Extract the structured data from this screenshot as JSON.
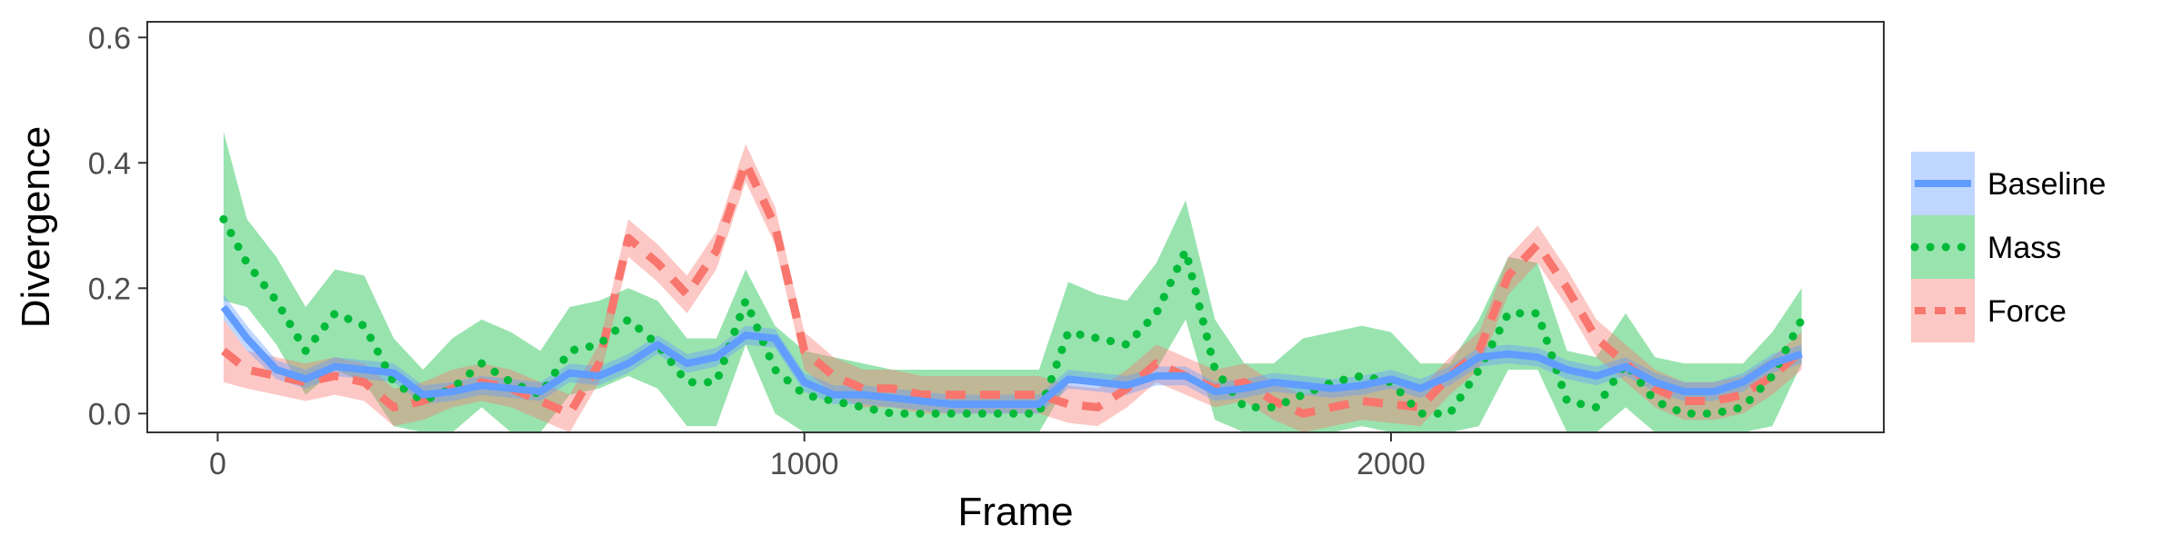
{
  "chart_data": {
    "type": "line",
    "title": "",
    "xlabel": "Frame",
    "ylabel": "Divergence",
    "xlim": [
      -120,
      2840
    ],
    "ylim": [
      -0.03,
      0.625
    ],
    "x_ticks": [
      0,
      1000,
      2000
    ],
    "x_tick_labels": [
      "0",
      "1000",
      "2000"
    ],
    "y_ticks": [
      0.0,
      0.2,
      0.4,
      0.6
    ],
    "y_tick_labels": [
      "0.0",
      "0.2",
      "0.4",
      "0.6"
    ],
    "grid": false,
    "legend_position": "right",
    "series": [
      {
        "name": "Baseline",
        "color": "#619CFF",
        "line_style": "solid",
        "x": [
          10,
          50,
          100,
          150,
          200,
          250,
          300,
          350,
          400,
          450,
          500,
          550,
          600,
          650,
          700,
          750,
          800,
          850,
          900,
          950,
          1000,
          1050,
          1100,
          1150,
          1200,
          1250,
          1300,
          1350,
          1400,
          1450,
          1500,
          1550,
          1600,
          1650,
          1700,
          1750,
          1800,
          1850,
          1900,
          1950,
          2000,
          2050,
          2100,
          2150,
          2200,
          2250,
          2300,
          2350,
          2400,
          2450,
          2500,
          2550,
          2600,
          2650,
          2700
        ],
        "y": [
          0.17,
          0.12,
          0.07,
          0.055,
          0.075,
          0.07,
          0.065,
          0.03,
          0.035,
          0.045,
          0.04,
          0.035,
          0.065,
          0.06,
          0.08,
          0.11,
          0.08,
          0.09,
          0.125,
          0.12,
          0.05,
          0.03,
          0.03,
          0.025,
          0.02,
          0.015,
          0.015,
          0.015,
          0.015,
          0.055,
          0.05,
          0.045,
          0.06,
          0.06,
          0.035,
          0.04,
          0.05,
          0.045,
          0.04,
          0.045,
          0.055,
          0.04,
          0.06,
          0.09,
          0.095,
          0.09,
          0.07,
          0.06,
          0.075,
          0.05,
          0.035,
          0.035,
          0.05,
          0.08,
          0.095
        ],
        "lower": [
          0.15,
          0.1,
          0.055,
          0.04,
          0.06,
          0.055,
          0.05,
          0.015,
          0.02,
          0.03,
          0.025,
          0.02,
          0.05,
          0.045,
          0.065,
          0.095,
          0.065,
          0.075,
          0.11,
          0.105,
          0.035,
          0.015,
          0.015,
          0.01,
          0.005,
          0.0,
          0.0,
          0.0,
          0.0,
          0.04,
          0.035,
          0.03,
          0.045,
          0.045,
          0.02,
          0.025,
          0.035,
          0.03,
          0.025,
          0.03,
          0.04,
          0.025,
          0.045,
          0.075,
          0.08,
          0.075,
          0.055,
          0.045,
          0.06,
          0.035,
          0.02,
          0.02,
          0.035,
          0.065,
          0.08
        ],
        "upper": [
          0.19,
          0.14,
          0.085,
          0.07,
          0.09,
          0.085,
          0.08,
          0.045,
          0.05,
          0.06,
          0.055,
          0.05,
          0.08,
          0.075,
          0.095,
          0.125,
          0.095,
          0.105,
          0.14,
          0.135,
          0.065,
          0.045,
          0.045,
          0.04,
          0.035,
          0.03,
          0.03,
          0.03,
          0.03,
          0.07,
          0.065,
          0.06,
          0.075,
          0.075,
          0.05,
          0.055,
          0.065,
          0.06,
          0.055,
          0.06,
          0.07,
          0.055,
          0.075,
          0.105,
          0.11,
          0.105,
          0.085,
          0.075,
          0.09,
          0.065,
          0.05,
          0.05,
          0.065,
          0.095,
          0.11
        ]
      },
      {
        "name": "Mass",
        "color": "#00BA38",
        "line_style": "dotted",
        "x": [
          10,
          50,
          100,
          150,
          200,
          250,
          300,
          350,
          400,
          450,
          500,
          550,
          600,
          650,
          700,
          750,
          800,
          850,
          900,
          950,
          1000,
          1050,
          1100,
          1150,
          1200,
          1250,
          1300,
          1350,
          1400,
          1450,
          1500,
          1550,
          1600,
          1650,
          1700,
          1750,
          1800,
          1850,
          1900,
          1950,
          2000,
          2050,
          2100,
          2150,
          2200,
          2250,
          2300,
          2350,
          2400,
          2450,
          2500,
          2550,
          2600,
          2650,
          2700
        ],
        "y": [
          0.31,
          0.24,
          0.18,
          0.1,
          0.16,
          0.14,
          0.05,
          0.02,
          0.04,
          0.08,
          0.05,
          0.03,
          0.1,
          0.11,
          0.15,
          0.11,
          0.05,
          0.05,
          0.18,
          0.07,
          0.03,
          0.02,
          0.01,
          0.0,
          0.0,
          0.0,
          0.0,
          0.0,
          0.0,
          0.13,
          0.12,
          0.11,
          0.16,
          0.26,
          0.07,
          0.01,
          0.01,
          0.03,
          0.05,
          0.06,
          0.05,
          0.0,
          0.0,
          0.07,
          0.16,
          0.16,
          0.02,
          0.01,
          0.08,
          0.02,
          0.0,
          0.0,
          0.01,
          0.06,
          0.15
        ],
        "lower": [
          0.18,
          0.17,
          0.11,
          0.03,
          0.07,
          0.05,
          -0.02,
          -0.03,
          -0.03,
          0.01,
          -0.03,
          -0.03,
          0.03,
          0.04,
          0.06,
          0.04,
          -0.02,
          -0.02,
          0.11,
          0.0,
          -0.03,
          -0.03,
          -0.03,
          -0.03,
          -0.03,
          -0.03,
          -0.03,
          -0.03,
          -0.03,
          0.05,
          0.05,
          0.04,
          0.07,
          0.15,
          -0.01,
          -0.03,
          -0.03,
          -0.03,
          -0.03,
          -0.02,
          -0.03,
          -0.03,
          -0.03,
          -0.02,
          0.07,
          0.07,
          -0.03,
          -0.03,
          0.01,
          -0.03,
          -0.03,
          -0.03,
          -0.03,
          -0.02,
          0.08
        ],
        "upper": [
          0.45,
          0.31,
          0.25,
          0.17,
          0.23,
          0.22,
          0.12,
          0.07,
          0.12,
          0.15,
          0.13,
          0.1,
          0.17,
          0.18,
          0.2,
          0.18,
          0.12,
          0.12,
          0.23,
          0.14,
          0.1,
          0.09,
          0.08,
          0.07,
          0.07,
          0.07,
          0.07,
          0.07,
          0.07,
          0.21,
          0.19,
          0.18,
          0.24,
          0.34,
          0.15,
          0.08,
          0.08,
          0.12,
          0.13,
          0.14,
          0.13,
          0.08,
          0.08,
          0.15,
          0.25,
          0.24,
          0.1,
          0.09,
          0.16,
          0.09,
          0.08,
          0.08,
          0.08,
          0.13,
          0.2
        ]
      },
      {
        "name": "Force",
        "color": "#F8766D",
        "line_style": "dashed",
        "x": [
          10,
          50,
          100,
          150,
          200,
          250,
          300,
          350,
          400,
          450,
          500,
          550,
          600,
          650,
          700,
          750,
          800,
          850,
          900,
          950,
          1000,
          1050,
          1100,
          1150,
          1200,
          1250,
          1300,
          1350,
          1400,
          1450,
          1500,
          1550,
          1600,
          1650,
          1700,
          1750,
          1800,
          1850,
          1900,
          1950,
          2000,
          2050,
          2100,
          2150,
          2200,
          2250,
          2300,
          2350,
          2400,
          2450,
          2500,
          2550,
          2600,
          2650,
          2700
        ],
        "y": [
          0.1,
          0.07,
          0.06,
          0.05,
          0.06,
          0.05,
          0.01,
          0.02,
          0.04,
          0.05,
          0.04,
          0.02,
          0.0,
          0.08,
          0.28,
          0.24,
          0.19,
          0.26,
          0.4,
          0.3,
          0.1,
          0.06,
          0.04,
          0.04,
          0.03,
          0.03,
          0.03,
          0.03,
          0.03,
          0.015,
          0.01,
          0.04,
          0.08,
          0.06,
          0.04,
          0.05,
          0.02,
          0.0,
          0.01,
          0.02,
          0.015,
          0.01,
          0.06,
          0.1,
          0.22,
          0.27,
          0.2,
          0.12,
          0.08,
          0.04,
          0.02,
          0.02,
          0.03,
          0.06,
          0.1
        ],
        "lower": [
          0.05,
          0.04,
          0.03,
          0.02,
          0.03,
          0.02,
          -0.02,
          -0.01,
          0.01,
          0.02,
          0.01,
          -0.01,
          -0.03,
          0.05,
          0.25,
          0.21,
          0.16,
          0.23,
          0.37,
          0.27,
          0.07,
          0.03,
          0.01,
          0.01,
          0.0,
          0.0,
          0.0,
          0.0,
          0.0,
          -0.015,
          -0.02,
          0.01,
          0.05,
          0.03,
          0.01,
          0.02,
          -0.01,
          -0.03,
          -0.02,
          -0.01,
          -0.015,
          -0.02,
          0.03,
          0.07,
          0.19,
          0.24,
          0.17,
          0.09,
          0.05,
          0.01,
          -0.01,
          -0.01,
          0.0,
          0.03,
          0.07
        ],
        "upper": [
          0.15,
          0.1,
          0.09,
          0.08,
          0.09,
          0.08,
          0.04,
          0.05,
          0.07,
          0.08,
          0.07,
          0.05,
          0.03,
          0.11,
          0.31,
          0.27,
          0.22,
          0.29,
          0.43,
          0.33,
          0.13,
          0.09,
          0.07,
          0.07,
          0.06,
          0.06,
          0.06,
          0.06,
          0.06,
          0.045,
          0.04,
          0.07,
          0.11,
          0.09,
          0.07,
          0.08,
          0.05,
          0.03,
          0.04,
          0.05,
          0.045,
          0.04,
          0.09,
          0.13,
          0.25,
          0.3,
          0.23,
          0.15,
          0.11,
          0.07,
          0.05,
          0.05,
          0.06,
          0.09,
          0.13
        ]
      }
    ]
  }
}
